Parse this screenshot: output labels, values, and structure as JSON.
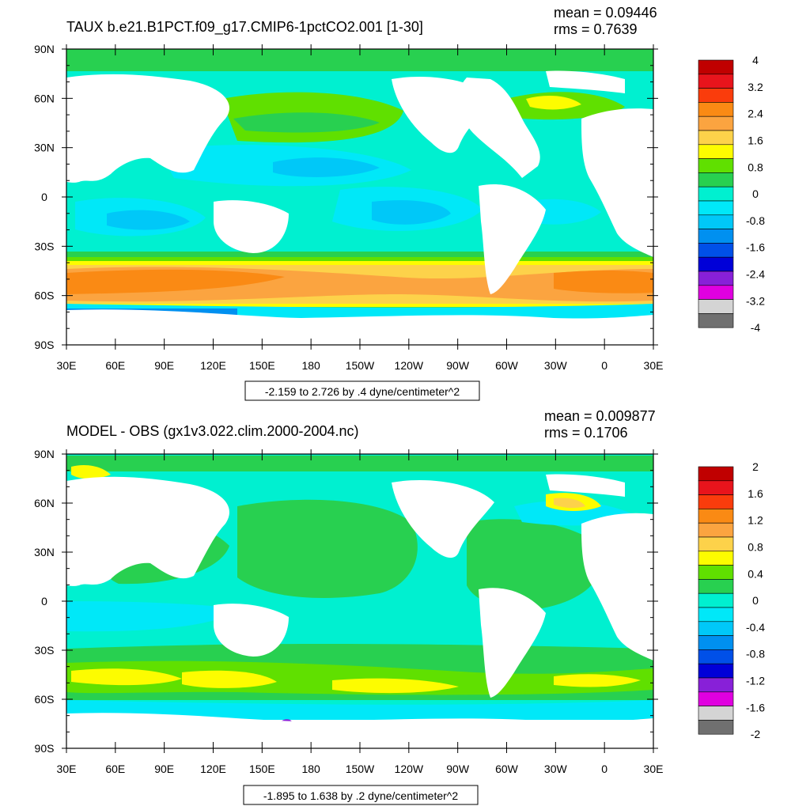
{
  "panels": [
    {
      "title": "TAUX b.e21.B1PCT.f09_g17.CMIP6-1pctCO2.001 [1-30]",
      "mean": "mean = 0.09446",
      "rms": "rms = 0.7639",
      "range_note": "-2.159 to 2.726 by .4 dyne/centimeter^2",
      "colorbar_labels": [
        "4",
        "3.2",
        "2.4",
        "1.6",
        "0.8",
        "0",
        "-0.8",
        "-1.6",
        "-2.4",
        "-3.2",
        "-4"
      ]
    },
    {
      "title": "MODEL - OBS (gx1v3.022.clim.2000-2004.nc)",
      "mean": "mean = 0.009877",
      "rms": "rms = 0.1706",
      "range_note": "-1.895 to 1.638 by .2 dyne/centimeter^2",
      "colorbar_labels": [
        "2",
        "1.6",
        "1.2",
        "0.8",
        "0.4",
        "0",
        "-0.4",
        "-0.8",
        "-1.2",
        "-1.6",
        "-2"
      ]
    }
  ],
  "lat_labels": [
    "90N",
    "60N",
    "30N",
    "0",
    "30S",
    "60S",
    "90S"
  ],
  "lon_labels": [
    "30E",
    "60E",
    "90E",
    "120E",
    "150E",
    "180",
    "150W",
    "120W",
    "90W",
    "60W",
    "30W",
    "0",
    "30E"
  ],
  "colorbar_colors": [
    "#c00000",
    "#e8141c",
    "#fa3c0c",
    "#fa8a14",
    "#fba440",
    "#fdd24a",
    "#fdfc00",
    "#60e000",
    "#28d050",
    "#00f0d0",
    "#00e8f8",
    "#00c8f8",
    "#0090f0",
    "#0050e8",
    "#0000d8",
    "#8820d8",
    "#e000e0",
    "#d4d4d4",
    "#707070"
  ]
}
